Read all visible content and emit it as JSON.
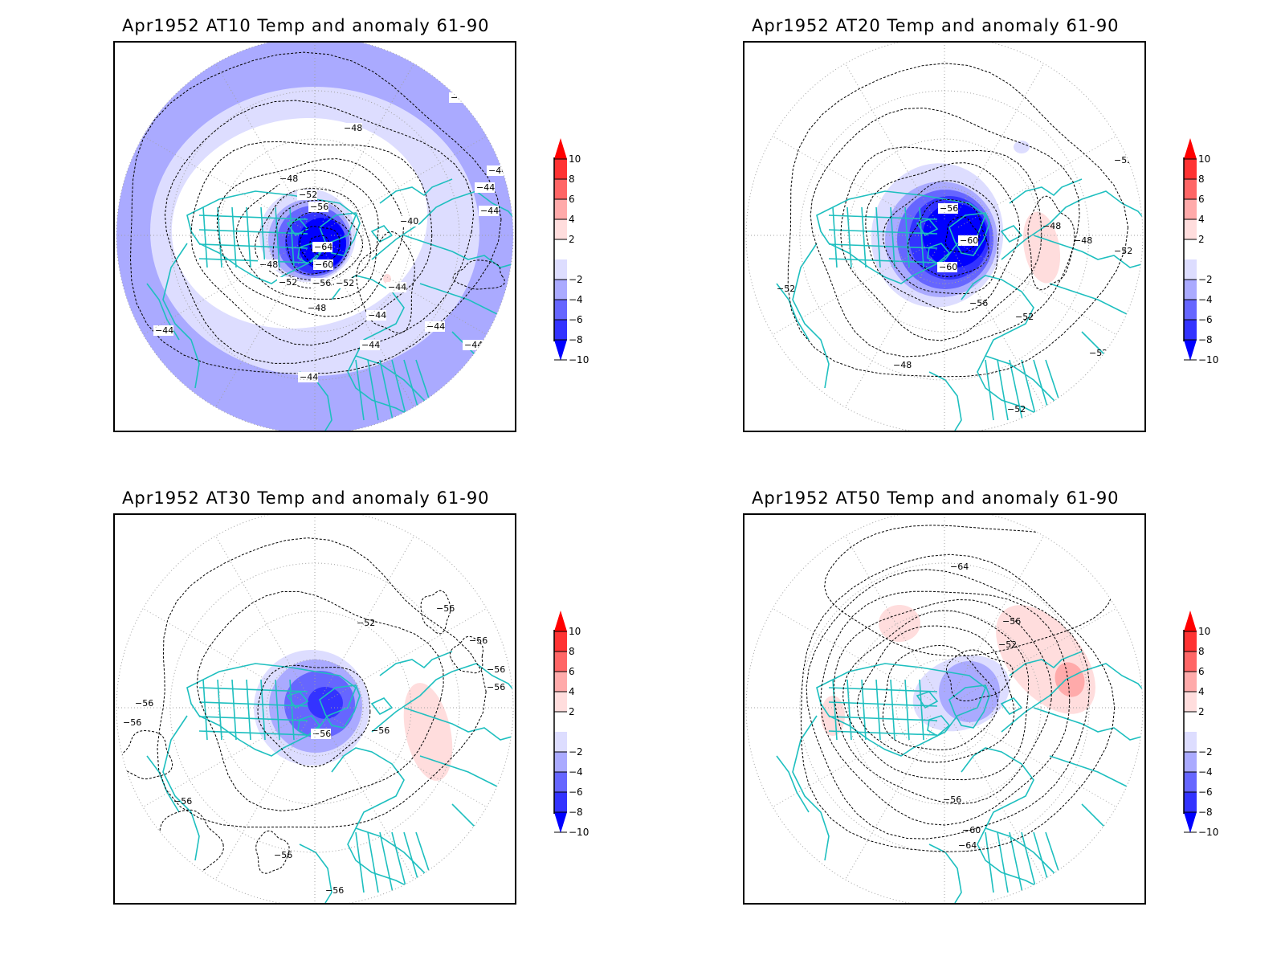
{
  "colors": {
    "coast": "#1ebfbf",
    "contour": "#000000",
    "graticule": "#a0a0a0",
    "anomaly_levels": [
      {
        "range": [
          8,
          10
        ],
        "color": "#ff3333"
      },
      {
        "range": [
          6,
          8
        ],
        "color": "#ff6666"
      },
      {
        "range": [
          4,
          6
        ],
        "color": "#ffaaaa"
      },
      {
        "range": [
          2,
          4
        ],
        "color": "#ffdddd"
      },
      {
        "range": [
          -2,
          2
        ],
        "color": "#ffffff"
      },
      {
        "range": [
          -4,
          -2
        ],
        "color": "#ddddff"
      },
      {
        "range": [
          -6,
          -4
        ],
        "color": "#aaaaff"
      },
      {
        "range": [
          -8,
          -6
        ],
        "color": "#6666ff"
      },
      {
        "range": [
          -10,
          -8
        ],
        "color": "#3333ff"
      }
    ],
    "over": "#ff0000",
    "under": "#0000ff"
  },
  "chart_data": [
    {
      "type": "heatmap",
      "title": "Apr1952 AT10 Temp and anomaly 61-90",
      "projection": "north polar stereographic",
      "colorbar": {
        "ticks": [
          10,
          8,
          6,
          4,
          2,
          -2,
          -4,
          -6,
          -8,
          -10
        ],
        "extend": "both"
      },
      "contour_labels": [
        "-44",
        "-44",
        "-48",
        "-48",
        "-52",
        "-56",
        "-44",
        "-40",
        "-64",
        "-48",
        "-60",
        "-52",
        "-56",
        "-52",
        "-44",
        "-48",
        "-44",
        "-44",
        "-44",
        "-44",
        "-44",
        "-44",
        "-44",
        "-44"
      ],
      "anomaly_min": -10
    },
    {
      "type": "heatmap",
      "title": "Apr1952 AT20 Temp and anomaly 61-90",
      "projection": "north polar stereographic",
      "colorbar": {
        "ticks": [
          10,
          8,
          6,
          4,
          2,
          -2,
          -4,
          -6,
          -8,
          -10
        ],
        "extend": "both"
      },
      "contour_labels": [
        "-52",
        "-56",
        "-60",
        "-60",
        "-48",
        "-48",
        "-56",
        "-52",
        "-52",
        "-48",
        "-52",
        "-52",
        "-52"
      ],
      "anomaly_min": -10
    },
    {
      "type": "heatmap",
      "title": "Apr1952 AT30 Temp and anomaly 61-90",
      "projection": "north polar stereographic",
      "colorbar": {
        "ticks": [
          10,
          8,
          6,
          4,
          2,
          -2,
          -4,
          -6,
          -8,
          -10
        ],
        "extend": "both"
      },
      "contour_labels": [
        "-56",
        "-52",
        "-56",
        "-56",
        "-56",
        "-56",
        "-56",
        "-56",
        "-56",
        "-56",
        "-56",
        "-56"
      ],
      "anomaly_min": -8
    },
    {
      "type": "heatmap",
      "title": "Apr1952 AT50 Temp and anomaly 61-90",
      "projection": "north polar stereographic",
      "colorbar": {
        "ticks": [
          10,
          8,
          6,
          4,
          2,
          -2,
          -4,
          -6,
          -8,
          -10
        ],
        "extend": "both"
      },
      "contour_labels": [
        "-64",
        "-56",
        "-52",
        "-56",
        "-60",
        "-64"
      ],
      "anomaly_min": -4
    }
  ]
}
